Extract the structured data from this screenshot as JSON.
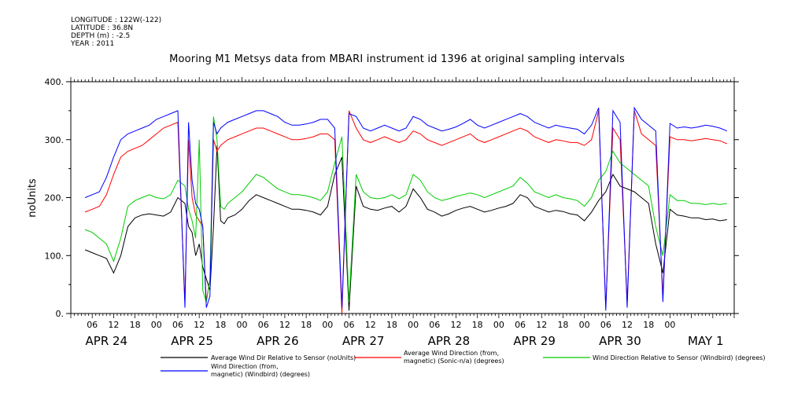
{
  "meta_lines": [
    "LONGITUDE : 122W(-122)",
    "LATITUDE : 36.8N",
    "DEPTH (m) : -2.5",
    "YEAR : 2011"
  ],
  "chart_data": {
    "type": "line",
    "title": "Mooring M1 Metsys data from MBARI instrument id 1396 at original sampling intervals",
    "ylabel": "noUnits",
    "xlabel": "",
    "ylim": [
      0,
      400
    ],
    "yticks": [
      0,
      100,
      200,
      300,
      400
    ],
    "ytick_labels": [
      "0.",
      "100.",
      "200.",
      "300.",
      "400."
    ],
    "xlim_hours": [
      -20,
      1
    ],
    "x_unit": "hours from 2011-04-24 00:00",
    "hour_ticks": [
      "06",
      "12",
      "18",
      "00",
      "06",
      "12",
      "18",
      "00",
      "06",
      "12",
      "18",
      "00",
      "06",
      "12",
      "18",
      "00",
      "06",
      "12",
      "18",
      "00",
      "06",
      "12",
      "18",
      "00",
      "06",
      "12",
      "18",
      "00"
    ],
    "day_labels": [
      "APR 24",
      "APR 25",
      "APR 26",
      "APR 27",
      "APR 28",
      "APR 29",
      "APR 30",
      "MAY  1"
    ],
    "grid": false,
    "legend_placement": "bottom",
    "series": [
      {
        "name": "Average Wind Dir Relative to Sensor (noUnits)",
        "color": "#000000",
        "x": [
          4,
          6,
          8,
          10,
          12,
          14,
          16,
          18,
          20,
          22,
          24,
          26,
          28,
          30,
          32,
          33,
          34,
          35,
          36,
          37,
          38,
          39,
          40,
          41,
          42,
          43,
          44,
          46,
          48,
          50,
          52,
          54,
          56,
          58,
          60,
          62,
          64,
          66,
          68,
          70,
          72,
          74,
          76,
          78,
          80,
          82,
          84,
          86,
          88,
          90,
          92,
          94,
          96,
          98,
          100,
          102,
          104,
          106,
          108,
          110,
          112,
          114,
          116,
          118,
          120,
          122,
          124,
          126,
          128,
          130,
          132,
          134,
          136,
          138,
          140,
          142,
          144,
          146,
          148,
          150,
          152,
          154,
          156,
          158,
          160,
          162,
          164,
          166,
          168,
          170,
          172,
          174,
          176,
          178,
          180,
          182,
          184
        ],
        "values": [
          110,
          105,
          100,
          95,
          70,
          100,
          150,
          165,
          170,
          172,
          170,
          168,
          175,
          200,
          190,
          150,
          140,
          100,
          120,
          80,
          60,
          40,
          150,
          290,
          160,
          155,
          165,
          170,
          180,
          195,
          205,
          200,
          195,
          190,
          185,
          180,
          180,
          178,
          175,
          170,
          185,
          240,
          270,
          5,
          220,
          185,
          180,
          178,
          182,
          185,
          175,
          185,
          215,
          200,
          180,
          175,
          168,
          172,
          178,
          182,
          185,
          180,
          175,
          178,
          182,
          185,
          190,
          205,
          200,
          185,
          180,
          175,
          178,
          176,
          172,
          170,
          160,
          175,
          195,
          210,
          240,
          220,
          215,
          210,
          200,
          190,
          120,
          70,
          180,
          170,
          168,
          165,
          165,
          162,
          163,
          160,
          162
        ]
      },
      {
        "name": "Average Wind Direction (from, magnetic) (Sonic-n/a) (degrees)",
        "color": "#ff0000",
        "x": [
          4,
          6,
          8,
          10,
          12,
          14,
          16,
          18,
          20,
          22,
          24,
          26,
          28,
          30,
          32,
          33,
          34,
          35,
          36,
          37,
          38,
          39,
          40,
          41,
          42,
          43,
          44,
          46,
          48,
          50,
          52,
          54,
          56,
          58,
          60,
          62,
          64,
          66,
          68,
          70,
          72,
          74,
          76,
          78,
          80,
          82,
          84,
          86,
          88,
          90,
          92,
          94,
          96,
          98,
          100,
          102,
          104,
          106,
          108,
          110,
          112,
          114,
          116,
          118,
          120,
          122,
          124,
          126,
          128,
          130,
          132,
          134,
          136,
          138,
          140,
          142,
          144,
          146,
          148,
          150,
          152,
          154,
          156,
          158,
          160,
          162,
          164,
          166,
          168,
          170,
          172,
          174,
          176,
          178,
          180,
          182,
          184
        ],
        "values": [
          175,
          180,
          185,
          205,
          240,
          270,
          280,
          285,
          290,
          300,
          310,
          320,
          325,
          330,
          20,
          300,
          200,
          170,
          160,
          150,
          20,
          60,
          300,
          280,
          290,
          295,
          300,
          305,
          310,
          315,
          320,
          320,
          315,
          310,
          305,
          300,
          300,
          302,
          305,
          310,
          310,
          300,
          0,
          350,
          320,
          300,
          295,
          300,
          305,
          300,
          295,
          300,
          315,
          310,
          300,
          295,
          290,
          295,
          300,
          305,
          310,
          300,
          295,
          300,
          305,
          310,
          315,
          320,
          315,
          305,
          300,
          295,
          300,
          298,
          295,
          295,
          290,
          300,
          350,
          10,
          320,
          300,
          20,
          350,
          310,
          300,
          290,
          30,
          305,
          300,
          300,
          298,
          300,
          302,
          300,
          298,
          293
        ]
      },
      {
        "name": "Wind Direction Relative to Sensor (Windbird) (degrees)",
        "color": "#00cc00",
        "x": [
          4,
          6,
          8,
          10,
          12,
          14,
          16,
          18,
          20,
          22,
          24,
          26,
          28,
          30,
          32,
          33,
          34,
          35,
          36,
          37,
          38,
          39,
          40,
          41,
          42,
          43,
          44,
          46,
          48,
          50,
          52,
          54,
          56,
          58,
          60,
          62,
          64,
          66,
          68,
          70,
          72,
          74,
          76,
          78,
          80,
          82,
          84,
          86,
          88,
          90,
          92,
          94,
          96,
          98,
          100,
          102,
          104,
          106,
          108,
          110,
          112,
          114,
          116,
          118,
          120,
          122,
          124,
          126,
          128,
          130,
          132,
          134,
          136,
          138,
          140,
          142,
          144,
          146,
          148,
          150,
          152,
          154,
          156,
          158,
          160,
          162,
          164,
          166,
          168,
          170,
          172,
          174,
          176,
          178,
          180,
          182,
          184
        ],
        "values": [
          145,
          140,
          130,
          120,
          90,
          130,
          185,
          195,
          200,
          205,
          200,
          198,
          205,
          230,
          220,
          180,
          160,
          130,
          300,
          40,
          20,
          60,
          340,
          300,
          185,
          180,
          190,
          200,
          210,
          225,
          240,
          235,
          225,
          215,
          210,
          205,
          205,
          203,
          200,
          195,
          210,
          260,
          305,
          20,
          240,
          210,
          200,
          198,
          200,
          205,
          198,
          205,
          240,
          230,
          210,
          200,
          195,
          198,
          202,
          205,
          208,
          205,
          200,
          205,
          210,
          215,
          220,
          235,
          225,
          210,
          205,
          200,
          205,
          200,
          198,
          195,
          185,
          200,
          230,
          245,
          280,
          260,
          250,
          240,
          230,
          220,
          150,
          100,
          205,
          195,
          195,
          190,
          190,
          188,
          190,
          188,
          190
        ]
      },
      {
        "name": "Wind Direction (from, magnetic) (Windbird) (degrees)",
        "color": "#0000ff",
        "x": [
          4,
          6,
          8,
          10,
          12,
          14,
          16,
          18,
          20,
          22,
          24,
          26,
          28,
          30,
          32,
          33,
          34,
          35,
          36,
          37,
          38,
          39,
          40,
          41,
          42,
          43,
          44,
          46,
          48,
          50,
          52,
          54,
          56,
          58,
          60,
          62,
          64,
          66,
          68,
          70,
          72,
          74,
          76,
          78,
          80,
          82,
          84,
          86,
          88,
          90,
          92,
          94,
          96,
          98,
          100,
          102,
          104,
          106,
          108,
          110,
          112,
          114,
          116,
          118,
          120,
          122,
          124,
          126,
          128,
          130,
          132,
          134,
          136,
          138,
          140,
          142,
          144,
          146,
          148,
          150,
          152,
          154,
          156,
          158,
          160,
          162,
          164,
          166,
          168,
          170,
          172,
          174,
          176,
          178,
          180,
          182,
          184
        ],
        "values": [
          200,
          205,
          210,
          235,
          270,
          300,
          310,
          315,
          320,
          325,
          335,
          340,
          345,
          350,
          10,
          330,
          230,
          190,
          180,
          150,
          10,
          30,
          330,
          310,
          320,
          325,
          330,
          335,
          340,
          345,
          350,
          350,
          345,
          340,
          330,
          325,
          325,
          327,
          330,
          335,
          335,
          320,
          10,
          345,
          340,
          320,
          315,
          320,
          325,
          320,
          315,
          320,
          340,
          335,
          325,
          320,
          315,
          318,
          322,
          328,
          335,
          325,
          320,
          325,
          330,
          335,
          340,
          345,
          340,
          330,
          325,
          320,
          325,
          322,
          320,
          318,
          310,
          325,
          355,
          5,
          350,
          330,
          10,
          355,
          335,
          325,
          315,
          20,
          328,
          320,
          322,
          320,
          322,
          325,
          323,
          320,
          315
        ]
      }
    ]
  },
  "legend": [
    {
      "label_lines": [
        "Average Wind Dir Relative to Sensor (noUnits)"
      ],
      "color": "#000000"
    },
    {
      "label_lines": [
        "Average Wind Direction (from,",
        "magnetic) (Sonic-n/a) (degrees)"
      ],
      "color": "#ff0000"
    },
    {
      "label_lines": [
        "Wind Direction Relative to Sensor (Windbird) (degrees)"
      ],
      "color": "#00cc00"
    },
    {
      "label_lines": [
        "Wind Direction (from,",
        "magnetic) (Windbird) (degrees)"
      ],
      "color": "#0000ff"
    }
  ]
}
